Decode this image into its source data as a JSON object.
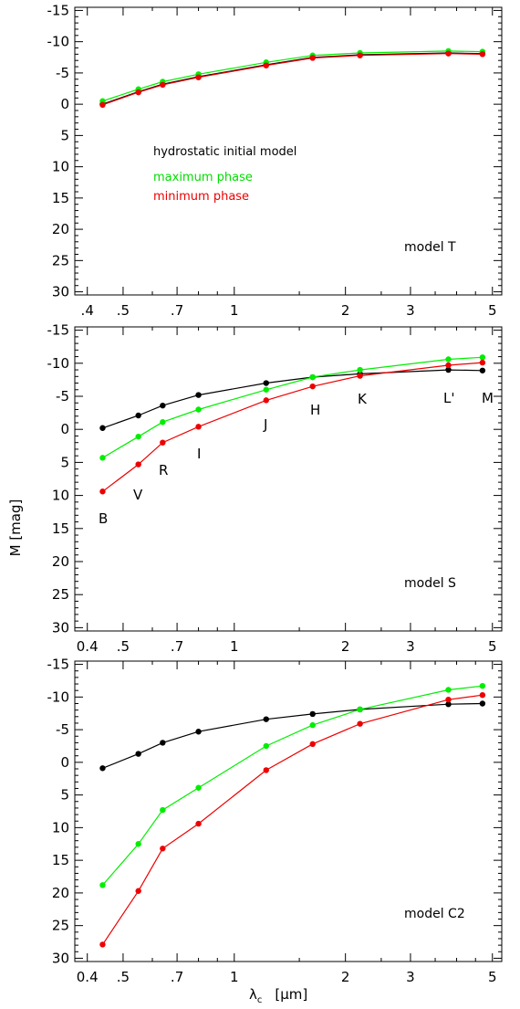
{
  "chart_data": [
    {
      "type": "line",
      "panel_label": "model T",
      "x": [
        0.44,
        0.55,
        0.64,
        0.8,
        1.22,
        1.63,
        2.19,
        3.8,
        4.7
      ],
      "x_scale": "log",
      "xlim": [
        0.37,
        5.3
      ],
      "ylim": [
        30.5,
        -15.5
      ],
      "xticks": [
        0.4,
        0.5,
        0.7,
        1,
        2,
        3,
        5
      ],
      "xtick_labels": [
        ".4",
        ".5",
        ".7",
        "1",
        "2",
        "3",
        "5"
      ],
      "yticks": [
        -15,
        -10,
        -5,
        0,
        5,
        10,
        15,
        20,
        25,
        30
      ],
      "ytick_labels": [
        "-15",
        "-10",
        "-5",
        "0",
        "5",
        "10",
        "15",
        "20",
        "25",
        "30"
      ],
      "series": [
        {
          "name": "hydrostatic initial model",
          "color": "#000000",
          "values": [
            0.0,
            -2.0,
            -3.2,
            -4.4,
            -6.3,
            -7.5,
            -7.9,
            -8.2,
            -8.1
          ]
        },
        {
          "name": "maximum phase",
          "color": "#00ee00",
          "values": [
            -0.5,
            -2.4,
            -3.6,
            -4.8,
            -6.7,
            -7.8,
            -8.2,
            -8.5,
            -8.4
          ]
        },
        {
          "name": "minimum phase",
          "color": "#ee0000",
          "values": [
            0.1,
            -1.9,
            -3.1,
            -4.3,
            -6.2,
            -7.4,
            -7.8,
            -8.1,
            -8.0
          ]
        }
      ]
    },
    {
      "type": "line",
      "panel_label": "model S",
      "x": [
        0.44,
        0.55,
        0.64,
        0.8,
        1.22,
        1.63,
        2.19,
        3.8,
        4.7
      ],
      "x_scale": "log",
      "xlim": [
        0.37,
        5.3
      ],
      "ylim": [
        30.5,
        -15.5
      ],
      "xticks": [
        0.4,
        0.5,
        0.7,
        1,
        2,
        3,
        5
      ],
      "xtick_labels": [
        "0.4",
        ".5",
        ".7",
        "1",
        "2",
        "3",
        "5"
      ],
      "yticks": [
        -15,
        -10,
        -5,
        0,
        5,
        10,
        15,
        20,
        25,
        30
      ],
      "ytick_labels": [
        "-15",
        "-10",
        "-5",
        "0",
        "5",
        "10",
        "15",
        "20",
        "25",
        "30"
      ],
      "band_labels": [
        "B",
        "V",
        "R",
        "I",
        "J",
        "H",
        "K",
        "L'",
        "M"
      ],
      "series": [
        {
          "name": "hydrostatic initial model",
          "color": "#000000",
          "values": [
            -0.2,
            -2.1,
            -3.6,
            -5.2,
            -7.0,
            -7.9,
            -8.4,
            -9.0,
            -8.9
          ]
        },
        {
          "name": "maximum phase",
          "color": "#00ee00",
          "values": [
            4.3,
            1.1,
            -1.1,
            -3.0,
            -6.0,
            -7.9,
            -9.0,
            -10.6,
            -10.9
          ]
        },
        {
          "name": "minimum phase",
          "color": "#ee0000",
          "values": [
            9.4,
            5.3,
            2.0,
            -0.4,
            -4.4,
            -6.5,
            -8.1,
            -9.7,
            -10.1
          ]
        }
      ]
    },
    {
      "type": "line",
      "panel_label": "model C2",
      "x": [
        0.44,
        0.55,
        0.64,
        0.8,
        1.22,
        1.63,
        2.19,
        3.8,
        4.7
      ],
      "x_scale": "log",
      "xlim": [
        0.37,
        5.3
      ],
      "ylim": [
        30.5,
        -15.5
      ],
      "xticks": [
        0.4,
        0.5,
        0.7,
        1,
        2,
        3,
        5
      ],
      "xtick_labels": [
        "0.4",
        ".5",
        ".7",
        "1",
        "2",
        "3",
        "5"
      ],
      "yticks": [
        -15,
        -10,
        -5,
        0,
        5,
        10,
        15,
        20,
        25,
        30
      ],
      "ytick_labels": [
        "-15",
        "-10",
        "-5",
        "0",
        "5",
        "10",
        "15",
        "20",
        "25",
        "30"
      ],
      "series": [
        {
          "name": "hydrostatic initial model",
          "color": "#000000",
          "values": [
            0.9,
            -1.3,
            -3.0,
            -4.7,
            -6.6,
            -7.4,
            -8.1,
            -8.9,
            -9.0
          ]
        },
        {
          "name": "maximum phase",
          "color": "#00ee00",
          "values": [
            18.8,
            12.5,
            7.3,
            3.9,
            -2.5,
            -5.7,
            -8.1,
            -11.1,
            -11.7
          ]
        },
        {
          "name": "minimum phase",
          "color": "#ee0000",
          "values": [
            27.9,
            19.7,
            13.2,
            9.4,
            1.2,
            -2.8,
            -5.9,
            -9.6,
            -10.3
          ]
        }
      ]
    }
  ],
  "axes": {
    "ylabel": "M   [mag]",
    "xlabel_symbol": "λ",
    "xlabel_subscript": "c",
    "xlabel_unit": "[μm]"
  },
  "legend": [
    {
      "label": "hydrostatic initial model",
      "color": "#000000"
    },
    {
      "label": "maximum phase",
      "color": "#00ee00"
    },
    {
      "label": "minimum phase",
      "color": "#ee0000"
    }
  ]
}
